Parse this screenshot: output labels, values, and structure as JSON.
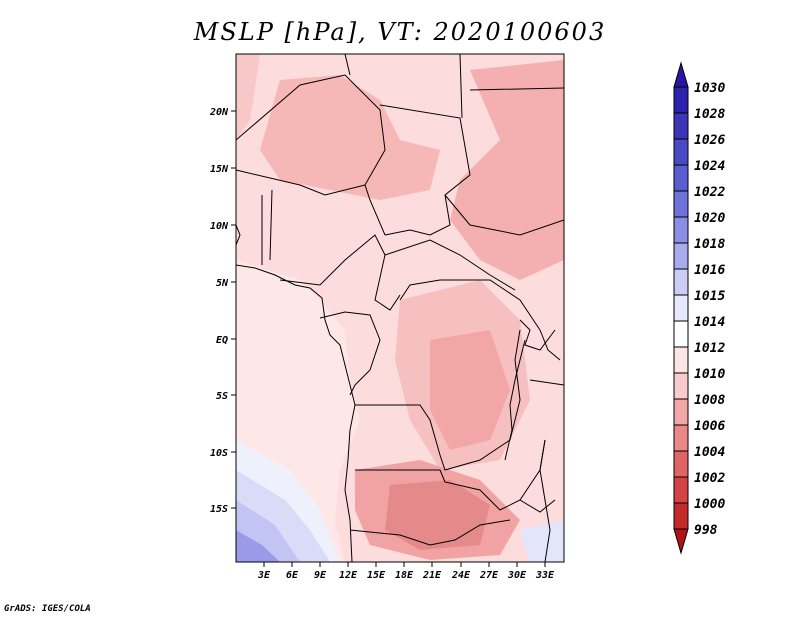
{
  "title": "MSLP [hPa], VT: 2020100603",
  "credit": "GrADS: IGES/COLA",
  "map": {
    "lat_labels": [
      "20N",
      "15N",
      "10N",
      "5N",
      "EQ",
      "5S",
      "10S",
      "15S"
    ],
    "lon_labels": [
      "3E",
      "6E",
      "9E",
      "12E",
      "15E",
      "18E",
      "21E",
      "24E",
      "27E",
      "30E",
      "33E"
    ]
  },
  "colorbar": {
    "levels": [
      "1030",
      "1028",
      "1026",
      "1024",
      "1022",
      "1020",
      "1018",
      "1016",
      "1015",
      "1014",
      "1012",
      "1010",
      "1008",
      "1006",
      "1004",
      "1002",
      "1000",
      "998"
    ],
    "colors": [
      "#2a16a6",
      "#2e23ad",
      "#3b35b8",
      "#4a4ac4",
      "#5b5ed0",
      "#6e73da",
      "#8a8ee4",
      "#a9acec",
      "#cacdf4",
      "#e6e8fb",
      "#ffffff",
      "#fbe6e6",
      "#f8cccc",
      "#f2a8a8",
      "#eb8888",
      "#e06464",
      "#d54444",
      "#c52a2a",
      "#b01414"
    ]
  }
}
